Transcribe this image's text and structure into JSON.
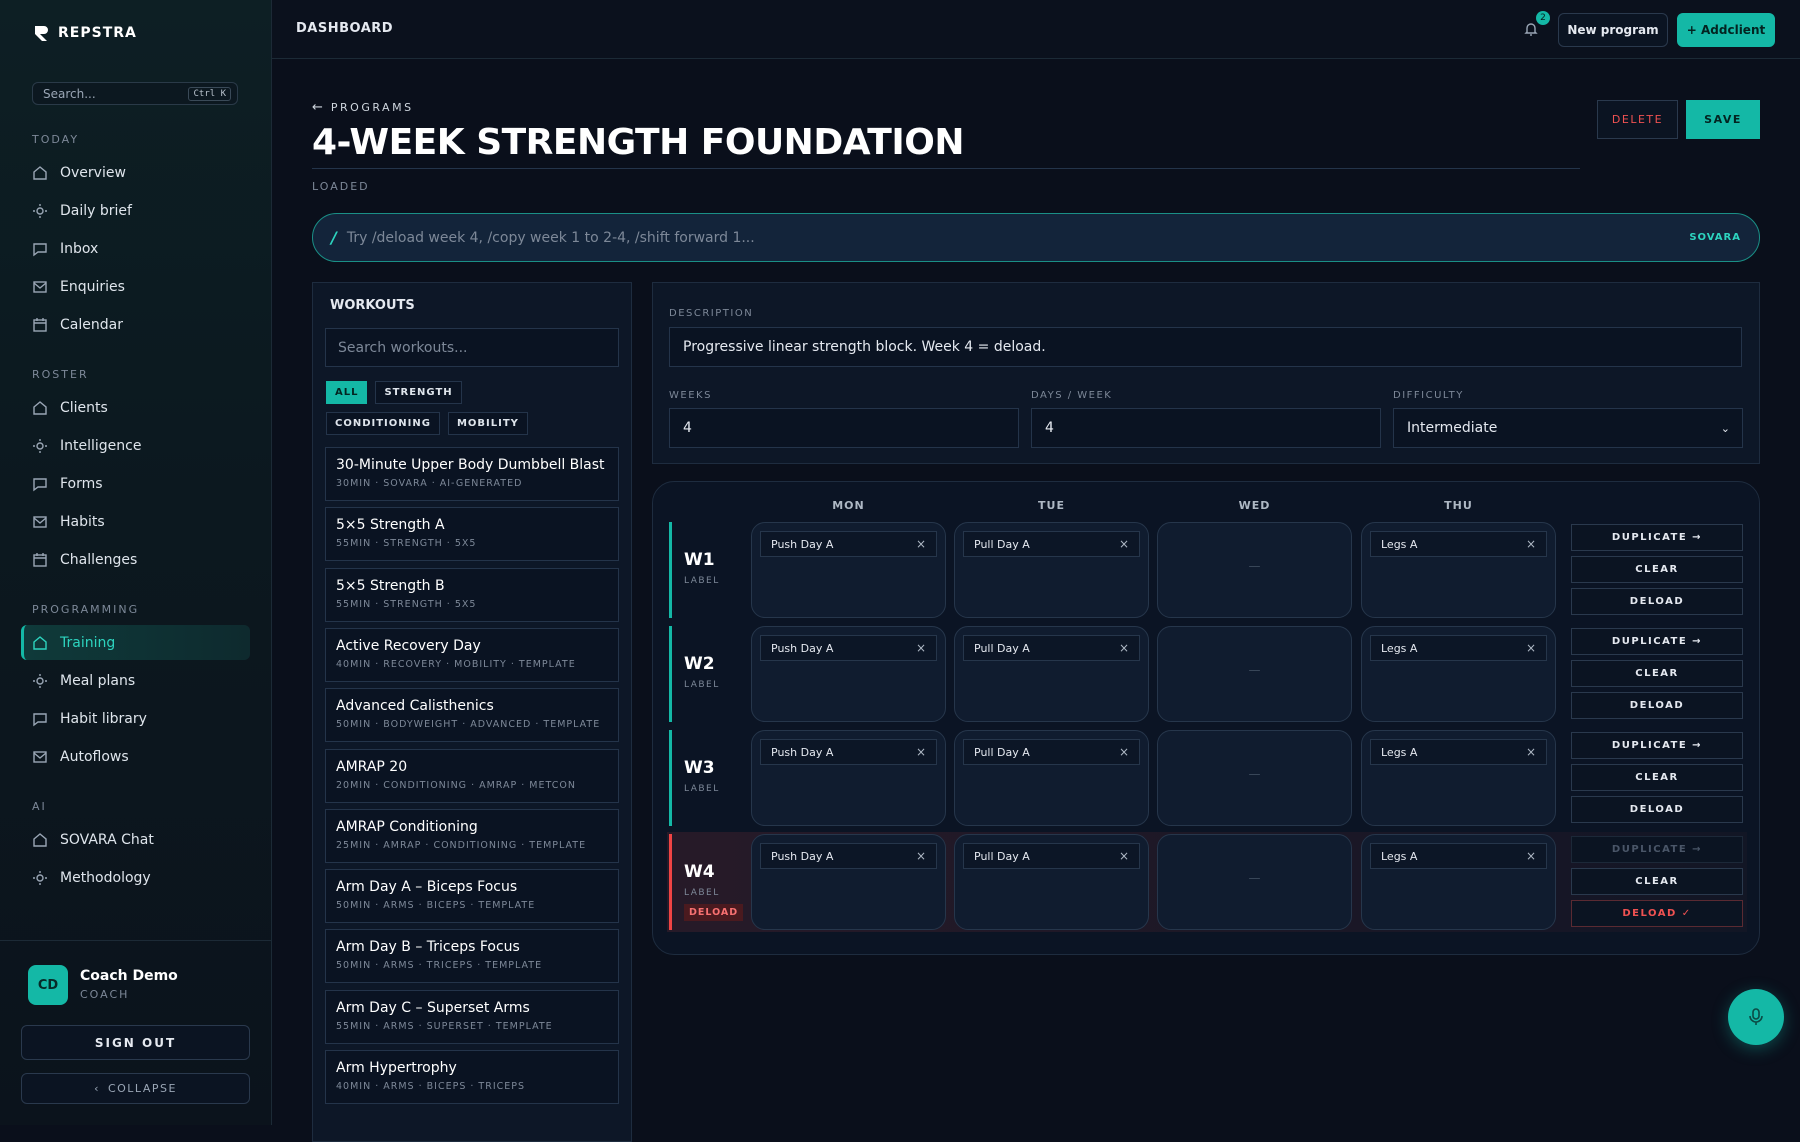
{
  "brand": "REPSTRA",
  "sidebar": {
    "search_placeholder": "Search...",
    "shortcut": "Ctrl K",
    "sections": [
      {
        "title": "TODAY",
        "items": [
          {
            "label": "Overview"
          },
          {
            "label": "Daily brief"
          },
          {
            "label": "Inbox"
          },
          {
            "label": "Enquiries"
          },
          {
            "label": "Calendar"
          }
        ]
      },
      {
        "title": "ROSTER",
        "items": [
          {
            "label": "Clients"
          },
          {
            "label": "Intelligence"
          },
          {
            "label": "Forms"
          },
          {
            "label": "Habits"
          },
          {
            "label": "Challenges"
          }
        ]
      },
      {
        "title": "PROGRAMMING",
        "items": [
          {
            "label": "Training",
            "active": true
          },
          {
            "label": "Meal plans"
          },
          {
            "label": "Habit library"
          },
          {
            "label": "Autoflows"
          }
        ]
      },
      {
        "title": "AI",
        "items": [
          {
            "label": "SOVARA Chat"
          },
          {
            "label": "Methodology"
          }
        ]
      }
    ],
    "user": {
      "initials": "CD",
      "name": "Coach Demo",
      "role": "COACH"
    },
    "sign_out": "SIGN OUT",
    "collapse": "COLLAPSE"
  },
  "header": {
    "title": "DASHBOARD",
    "notifications": 2,
    "new_program": "New program",
    "add_client": "+ Addclient"
  },
  "program": {
    "back": "PROGRAMS",
    "title": "4-WEEK STRENGTH FOUNDATION",
    "status": "LOADED",
    "delete": "DELETE",
    "save": "SAVE"
  },
  "command": {
    "prompt": "/",
    "placeholder": "Try /deload week 4, /copy week 1 to 2-4, /shift forward 1...",
    "badge": "SOVARA"
  },
  "workouts": {
    "title": "WORKOUTS",
    "search_placeholder": "Search workouts...",
    "filters": [
      {
        "label": "ALL",
        "active": true
      },
      {
        "label": "STRENGTH"
      },
      {
        "label": "CONDITIONING"
      },
      {
        "label": "MOBILITY"
      }
    ],
    "items": [
      {
        "name": "30-Minute Upper Body Dumbbell Blast",
        "meta": "30MIN · SOVARA · AI-GENERATED"
      },
      {
        "name": "5×5 Strength A",
        "meta": "55MIN · STRENGTH · 5X5"
      },
      {
        "name": "5×5 Strength B",
        "meta": "55MIN · STRENGTH · 5X5"
      },
      {
        "name": "Active Recovery Day",
        "meta": "40MIN · RECOVERY · MOBILITY · TEMPLATE"
      },
      {
        "name": "Advanced Calisthenics",
        "meta": "50MIN · BODYWEIGHT · ADVANCED · TEMPLATE"
      },
      {
        "name": "AMRAP 20",
        "meta": "20MIN · CONDITIONING · AMRAP · METCON"
      },
      {
        "name": "AMRAP Conditioning",
        "meta": "25MIN · AMRAP · CONDITIONING · TEMPLATE"
      },
      {
        "name": "Arm Day A – Biceps Focus",
        "meta": "50MIN · ARMS · BICEPS · TEMPLATE"
      },
      {
        "name": "Arm Day B – Triceps Focus",
        "meta": "50MIN · ARMS · TRICEPS · TEMPLATE"
      },
      {
        "name": "Arm Day C – Superset Arms",
        "meta": "55MIN · ARMS · SUPERSET · TEMPLATE"
      },
      {
        "name": "Arm Hypertrophy",
        "meta": "40MIN · ARMS · BICEPS · TRICEPS"
      }
    ]
  },
  "details": {
    "description_label": "DESCRIPTION",
    "description": "Progressive linear strength block. Week 4 = deload.",
    "weeks_label": "WEEKS",
    "weeks": 4,
    "days_label": "DAYS / WEEK",
    "days": 4,
    "difficulty_label": "DIFFICULTY",
    "difficulty": "Intermediate"
  },
  "grid": {
    "days": [
      "MON",
      "TUE",
      "WED",
      "THU"
    ],
    "empty_cell": "—",
    "remove": "×",
    "actions": {
      "duplicate": "DUPLICATE →",
      "clear": "CLEAR",
      "deload": "DELOAD",
      "deloaded": "DELOAD ✓"
    },
    "weeks": [
      {
        "label": "W1",
        "sub": "LABEL",
        "cells": [
          "Push Day A",
          "Pull Day A",
          null,
          "Legs A"
        ]
      },
      {
        "label": "W2",
        "sub": "LABEL",
        "cells": [
          "Push Day A",
          "Pull Day A",
          null,
          "Legs A"
        ]
      },
      {
        "label": "W3",
        "sub": "LABEL",
        "cells": [
          "Push Day A",
          "Pull Day A",
          null,
          "Legs A"
        ]
      },
      {
        "label": "W4",
        "sub": "LABEL",
        "tag": "DELOAD",
        "deload": true,
        "cells": [
          "Push Day A",
          "Pull Day A",
          null,
          "Legs A"
        ]
      }
    ]
  }
}
